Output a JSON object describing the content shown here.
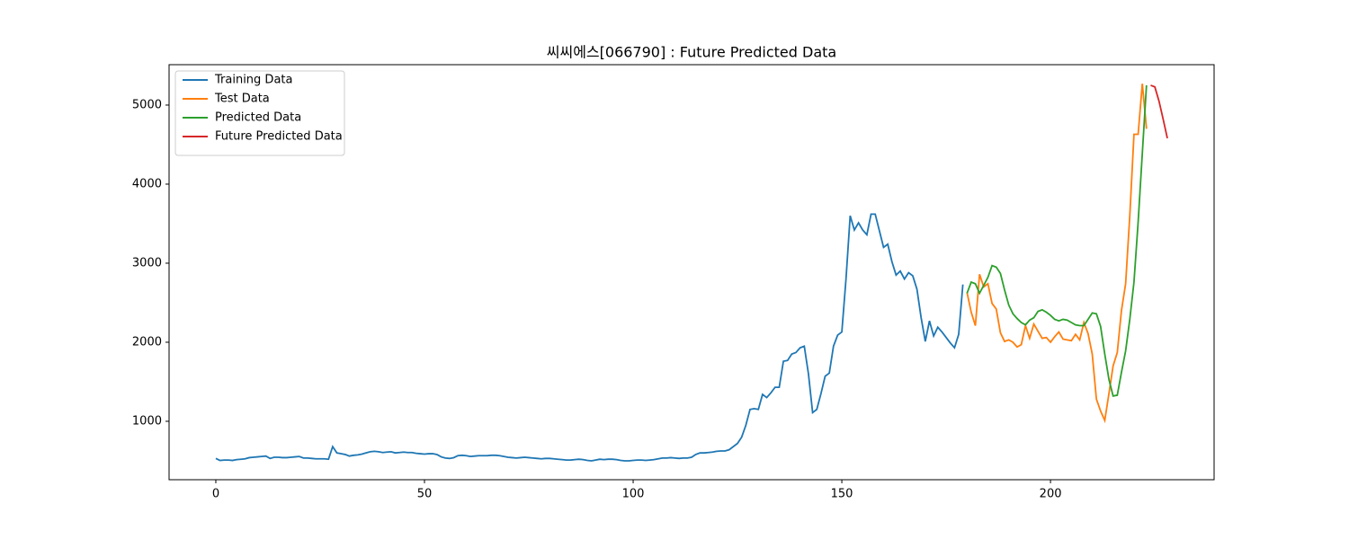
{
  "chart_data": {
    "type": "line",
    "title": "씨씨에스[066790] : Future Predicted Data",
    "xlim": [
      -11.2,
      239.2
    ],
    "ylim": [
      261,
      5511
    ],
    "xticks": [
      0,
      50,
      100,
      150,
      200
    ],
    "yticks": [
      1000,
      2000,
      3000,
      4000,
      5000
    ],
    "grid": false,
    "legend": "upper left",
    "series": [
      {
        "name": "Training Data",
        "color": "#1f77b4",
        "x": [
          0,
          1,
          2,
          3,
          4,
          5,
          6,
          7,
          8,
          9,
          10,
          11,
          12,
          13,
          14,
          15,
          16,
          17,
          18,
          19,
          20,
          21,
          22,
          23,
          24,
          25,
          26,
          27,
          28,
          29,
          30,
          31,
          32,
          33,
          34,
          35,
          36,
          37,
          38,
          39,
          40,
          41,
          42,
          43,
          44,
          45,
          46,
          47,
          48,
          49,
          50,
          51,
          52,
          53,
          54,
          55,
          56,
          57,
          58,
          59,
          60,
          61,
          62,
          63,
          64,
          65,
          66,
          67,
          68,
          69,
          70,
          71,
          72,
          73,
          74,
          75,
          76,
          77,
          78,
          79,
          80,
          81,
          82,
          83,
          84,
          85,
          86,
          87,
          88,
          89,
          90,
          91,
          92,
          93,
          94,
          95,
          96,
          97,
          98,
          99,
          100,
          101,
          102,
          103,
          104,
          105,
          106,
          107,
          108,
          109,
          110,
          111,
          112,
          113,
          114,
          115,
          116,
          117,
          118,
          119,
          120,
          121,
          122,
          123,
          124,
          125,
          126,
          127,
          128,
          129,
          130,
          131,
          132,
          133,
          134,
          135,
          136,
          137,
          138,
          139,
          140,
          141,
          142,
          143,
          144,
          145,
          146,
          147,
          148,
          149,
          150,
          151,
          152,
          153,
          154,
          155,
          156,
          157,
          158,
          159,
          160,
          161,
          162,
          163,
          164,
          165,
          166,
          167,
          168,
          169,
          170,
          171,
          172,
          173,
          174,
          175,
          176,
          177,
          178,
          179
        ],
        "values": [
          530,
          505,
          510,
          510,
          505,
          515,
          520,
          525,
          540,
          545,
          550,
          555,
          560,
          530,
          545,
          545,
          540,
          540,
          545,
          550,
          555,
          535,
          535,
          530,
          525,
          525,
          525,
          520,
          680,
          600,
          590,
          580,
          560,
          570,
          575,
          585,
          600,
          615,
          620,
          615,
          605,
          610,
          615,
          600,
          605,
          610,
          605,
          605,
          595,
          590,
          585,
          590,
          590,
          580,
          550,
          535,
          530,
          540,
          565,
          570,
          565,
          555,
          560,
          565,
          565,
          565,
          570,
          570,
          565,
          555,
          545,
          540,
          535,
          540,
          545,
          540,
          535,
          530,
          525,
          530,
          530,
          525,
          520,
          515,
          510,
          510,
          515,
          520,
          515,
          505,
          500,
          510,
          520,
          515,
          520,
          520,
          515,
          505,
          500,
          500,
          505,
          510,
          510,
          505,
          510,
          515,
          525,
          535,
          535,
          540,
          535,
          530,
          535,
          535,
          545,
          580,
          600,
          600,
          605,
          610,
          620,
          625,
          625,
          640,
          680,
          720,
          800,
          950,
          1150,
          1160,
          1150,
          1340,
          1300,
          1360,
          1430,
          1430,
          1760,
          1770,
          1850,
          1870,
          1930,
          1950,
          1600,
          1110,
          1150,
          1350,
          1570,
          1610,
          1950,
          2090,
          2130,
          2800,
          3600,
          3420,
          3510,
          3420,
          3360,
          3620,
          3620,
          3410,
          3200,
          3240,
          3020,
          2850,
          2900,
          2800,
          2880,
          2840,
          2670,
          2310,
          2010,
          2270,
          2080,
          2190,
          2130,
          2060,
          1990,
          1930,
          2100,
          2730
        ]
      },
      {
        "name": "Test Data",
        "color": "#ff7f0e",
        "x": [
          180,
          181,
          182,
          183,
          184,
          185,
          186,
          187,
          188,
          189,
          190,
          191,
          192,
          193,
          194,
          195,
          196,
          197,
          198,
          199,
          200,
          201,
          202,
          203,
          204,
          205,
          206,
          207,
          208,
          209,
          210,
          211,
          212,
          213,
          214,
          215,
          216,
          217,
          218,
          219,
          220,
          221,
          222,
          223
        ],
        "values": [
          2630,
          2380,
          2210,
          2860,
          2700,
          2740,
          2490,
          2420,
          2120,
          2010,
          2030,
          2000,
          1940,
          1970,
          2210,
          2050,
          2230,
          2140,
          2050,
          2060,
          2000,
          2070,
          2130,
          2040,
          2030,
          2020,
          2100,
          2030,
          2250,
          2110,
          1850,
          1280,
          1130,
          1010,
          1350,
          1700,
          1870,
          2400,
          2740,
          3600,
          4630,
          4630,
          5270,
          4700
        ]
      },
      {
        "name": "Predicted Data",
        "color": "#2ca02c",
        "x": [
          180,
          181,
          182,
          183,
          184,
          185,
          186,
          187,
          188,
          189,
          190,
          191,
          192,
          193,
          194,
          195,
          196,
          197,
          198,
          199,
          200,
          201,
          202,
          203,
          204,
          205,
          206,
          207,
          208,
          209,
          210,
          211,
          212,
          213,
          214,
          215,
          216,
          217,
          218,
          219,
          220,
          221,
          222,
          223
        ],
        "values": [
          2620,
          2760,
          2740,
          2620,
          2720,
          2820,
          2970,
          2950,
          2870,
          2660,
          2470,
          2360,
          2300,
          2250,
          2220,
          2280,
          2310,
          2390,
          2410,
          2380,
          2340,
          2290,
          2270,
          2290,
          2280,
          2250,
          2220,
          2210,
          2210,
          2290,
          2370,
          2360,
          2200,
          1850,
          1530,
          1320,
          1330,
          1620,
          1890,
          2290,
          2760,
          3520,
          4390,
          5250
        ]
      },
      {
        "name": "Future Predicted Data",
        "color": "#d62728",
        "x": [
          224,
          225,
          226,
          227,
          228
        ],
        "values": [
          5250,
          5230,
          5050,
          4820,
          4580
        ]
      }
    ]
  }
}
